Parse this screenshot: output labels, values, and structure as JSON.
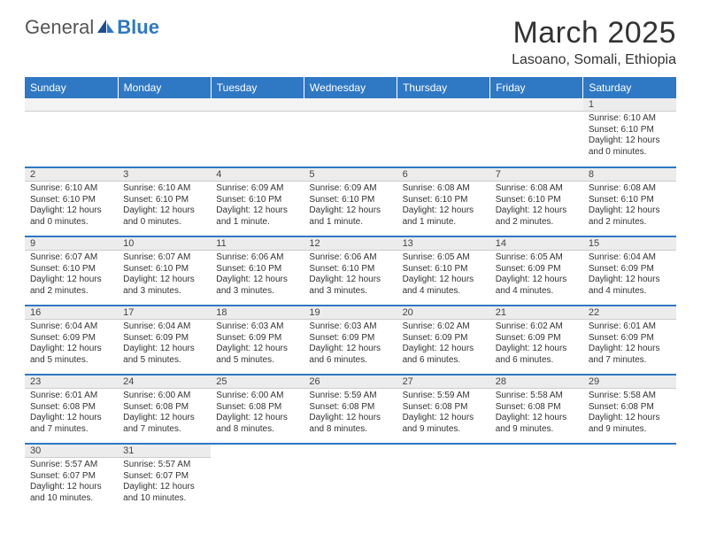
{
  "brand": {
    "part1": "General",
    "part2": "Blue"
  },
  "title": "March 2025",
  "location": "Lasoano, Somali, Ethiopia",
  "colors": {
    "header_bg": "#2f78c4",
    "header_text": "#ffffff",
    "daynum_bg": "#ececec",
    "divider": "#2f78c4",
    "body_text": "#333333",
    "background": "#ffffff"
  },
  "typography": {
    "title_fontsize": 34,
    "location_fontsize": 16,
    "dayhead_fontsize": 12,
    "daynum_fontsize": 11,
    "cell_fontsize": 10
  },
  "weekdays": [
    "Sunday",
    "Monday",
    "Tuesday",
    "Wednesday",
    "Thursday",
    "Friday",
    "Saturday"
  ],
  "weeks": [
    [
      {
        "num": "",
        "sunrise": "",
        "sunset": "",
        "daylight1": "",
        "daylight2": ""
      },
      {
        "num": "",
        "sunrise": "",
        "sunset": "",
        "daylight1": "",
        "daylight2": ""
      },
      {
        "num": "",
        "sunrise": "",
        "sunset": "",
        "daylight1": "",
        "daylight2": ""
      },
      {
        "num": "",
        "sunrise": "",
        "sunset": "",
        "daylight1": "",
        "daylight2": ""
      },
      {
        "num": "",
        "sunrise": "",
        "sunset": "",
        "daylight1": "",
        "daylight2": ""
      },
      {
        "num": "",
        "sunrise": "",
        "sunset": "",
        "daylight1": "",
        "daylight2": ""
      },
      {
        "num": "1",
        "sunrise": "Sunrise: 6:10 AM",
        "sunset": "Sunset: 6:10 PM",
        "daylight1": "Daylight: 12 hours",
        "daylight2": "and 0 minutes."
      }
    ],
    [
      {
        "num": "2",
        "sunrise": "Sunrise: 6:10 AM",
        "sunset": "Sunset: 6:10 PM",
        "daylight1": "Daylight: 12 hours",
        "daylight2": "and 0 minutes."
      },
      {
        "num": "3",
        "sunrise": "Sunrise: 6:10 AM",
        "sunset": "Sunset: 6:10 PM",
        "daylight1": "Daylight: 12 hours",
        "daylight2": "and 0 minutes."
      },
      {
        "num": "4",
        "sunrise": "Sunrise: 6:09 AM",
        "sunset": "Sunset: 6:10 PM",
        "daylight1": "Daylight: 12 hours",
        "daylight2": "and 1 minute."
      },
      {
        "num": "5",
        "sunrise": "Sunrise: 6:09 AM",
        "sunset": "Sunset: 6:10 PM",
        "daylight1": "Daylight: 12 hours",
        "daylight2": "and 1 minute."
      },
      {
        "num": "6",
        "sunrise": "Sunrise: 6:08 AM",
        "sunset": "Sunset: 6:10 PM",
        "daylight1": "Daylight: 12 hours",
        "daylight2": "and 1 minute."
      },
      {
        "num": "7",
        "sunrise": "Sunrise: 6:08 AM",
        "sunset": "Sunset: 6:10 PM",
        "daylight1": "Daylight: 12 hours",
        "daylight2": "and 2 minutes."
      },
      {
        "num": "8",
        "sunrise": "Sunrise: 6:08 AM",
        "sunset": "Sunset: 6:10 PM",
        "daylight1": "Daylight: 12 hours",
        "daylight2": "and 2 minutes."
      }
    ],
    [
      {
        "num": "9",
        "sunrise": "Sunrise: 6:07 AM",
        "sunset": "Sunset: 6:10 PM",
        "daylight1": "Daylight: 12 hours",
        "daylight2": "and 2 minutes."
      },
      {
        "num": "10",
        "sunrise": "Sunrise: 6:07 AM",
        "sunset": "Sunset: 6:10 PM",
        "daylight1": "Daylight: 12 hours",
        "daylight2": "and 3 minutes."
      },
      {
        "num": "11",
        "sunrise": "Sunrise: 6:06 AM",
        "sunset": "Sunset: 6:10 PM",
        "daylight1": "Daylight: 12 hours",
        "daylight2": "and 3 minutes."
      },
      {
        "num": "12",
        "sunrise": "Sunrise: 6:06 AM",
        "sunset": "Sunset: 6:10 PM",
        "daylight1": "Daylight: 12 hours",
        "daylight2": "and 3 minutes."
      },
      {
        "num": "13",
        "sunrise": "Sunrise: 6:05 AM",
        "sunset": "Sunset: 6:10 PM",
        "daylight1": "Daylight: 12 hours",
        "daylight2": "and 4 minutes."
      },
      {
        "num": "14",
        "sunrise": "Sunrise: 6:05 AM",
        "sunset": "Sunset: 6:09 PM",
        "daylight1": "Daylight: 12 hours",
        "daylight2": "and 4 minutes."
      },
      {
        "num": "15",
        "sunrise": "Sunrise: 6:04 AM",
        "sunset": "Sunset: 6:09 PM",
        "daylight1": "Daylight: 12 hours",
        "daylight2": "and 4 minutes."
      }
    ],
    [
      {
        "num": "16",
        "sunrise": "Sunrise: 6:04 AM",
        "sunset": "Sunset: 6:09 PM",
        "daylight1": "Daylight: 12 hours",
        "daylight2": "and 5 minutes."
      },
      {
        "num": "17",
        "sunrise": "Sunrise: 6:04 AM",
        "sunset": "Sunset: 6:09 PM",
        "daylight1": "Daylight: 12 hours",
        "daylight2": "and 5 minutes."
      },
      {
        "num": "18",
        "sunrise": "Sunrise: 6:03 AM",
        "sunset": "Sunset: 6:09 PM",
        "daylight1": "Daylight: 12 hours",
        "daylight2": "and 5 minutes."
      },
      {
        "num": "19",
        "sunrise": "Sunrise: 6:03 AM",
        "sunset": "Sunset: 6:09 PM",
        "daylight1": "Daylight: 12 hours",
        "daylight2": "and 6 minutes."
      },
      {
        "num": "20",
        "sunrise": "Sunrise: 6:02 AM",
        "sunset": "Sunset: 6:09 PM",
        "daylight1": "Daylight: 12 hours",
        "daylight2": "and 6 minutes."
      },
      {
        "num": "21",
        "sunrise": "Sunrise: 6:02 AM",
        "sunset": "Sunset: 6:09 PM",
        "daylight1": "Daylight: 12 hours",
        "daylight2": "and 6 minutes."
      },
      {
        "num": "22",
        "sunrise": "Sunrise: 6:01 AM",
        "sunset": "Sunset: 6:09 PM",
        "daylight1": "Daylight: 12 hours",
        "daylight2": "and 7 minutes."
      }
    ],
    [
      {
        "num": "23",
        "sunrise": "Sunrise: 6:01 AM",
        "sunset": "Sunset: 6:08 PM",
        "daylight1": "Daylight: 12 hours",
        "daylight2": "and 7 minutes."
      },
      {
        "num": "24",
        "sunrise": "Sunrise: 6:00 AM",
        "sunset": "Sunset: 6:08 PM",
        "daylight1": "Daylight: 12 hours",
        "daylight2": "and 7 minutes."
      },
      {
        "num": "25",
        "sunrise": "Sunrise: 6:00 AM",
        "sunset": "Sunset: 6:08 PM",
        "daylight1": "Daylight: 12 hours",
        "daylight2": "and 8 minutes."
      },
      {
        "num": "26",
        "sunrise": "Sunrise: 5:59 AM",
        "sunset": "Sunset: 6:08 PM",
        "daylight1": "Daylight: 12 hours",
        "daylight2": "and 8 minutes."
      },
      {
        "num": "27",
        "sunrise": "Sunrise: 5:59 AM",
        "sunset": "Sunset: 6:08 PM",
        "daylight1": "Daylight: 12 hours",
        "daylight2": "and 9 minutes."
      },
      {
        "num": "28",
        "sunrise": "Sunrise: 5:58 AM",
        "sunset": "Sunset: 6:08 PM",
        "daylight1": "Daylight: 12 hours",
        "daylight2": "and 9 minutes."
      },
      {
        "num": "29",
        "sunrise": "Sunrise: 5:58 AM",
        "sunset": "Sunset: 6:08 PM",
        "daylight1": "Daylight: 12 hours",
        "daylight2": "and 9 minutes."
      }
    ],
    [
      {
        "num": "30",
        "sunrise": "Sunrise: 5:57 AM",
        "sunset": "Sunset: 6:07 PM",
        "daylight1": "Daylight: 12 hours",
        "daylight2": "and 10 minutes."
      },
      {
        "num": "31",
        "sunrise": "Sunrise: 5:57 AM",
        "sunset": "Sunset: 6:07 PM",
        "daylight1": "Daylight: 12 hours",
        "daylight2": "and 10 minutes."
      },
      {
        "num": "",
        "sunrise": "",
        "sunset": "",
        "daylight1": "",
        "daylight2": ""
      },
      {
        "num": "",
        "sunrise": "",
        "sunset": "",
        "daylight1": "",
        "daylight2": ""
      },
      {
        "num": "",
        "sunrise": "",
        "sunset": "",
        "daylight1": "",
        "daylight2": ""
      },
      {
        "num": "",
        "sunrise": "",
        "sunset": "",
        "daylight1": "",
        "daylight2": ""
      },
      {
        "num": "",
        "sunrise": "",
        "sunset": "",
        "daylight1": "",
        "daylight2": ""
      }
    ]
  ]
}
